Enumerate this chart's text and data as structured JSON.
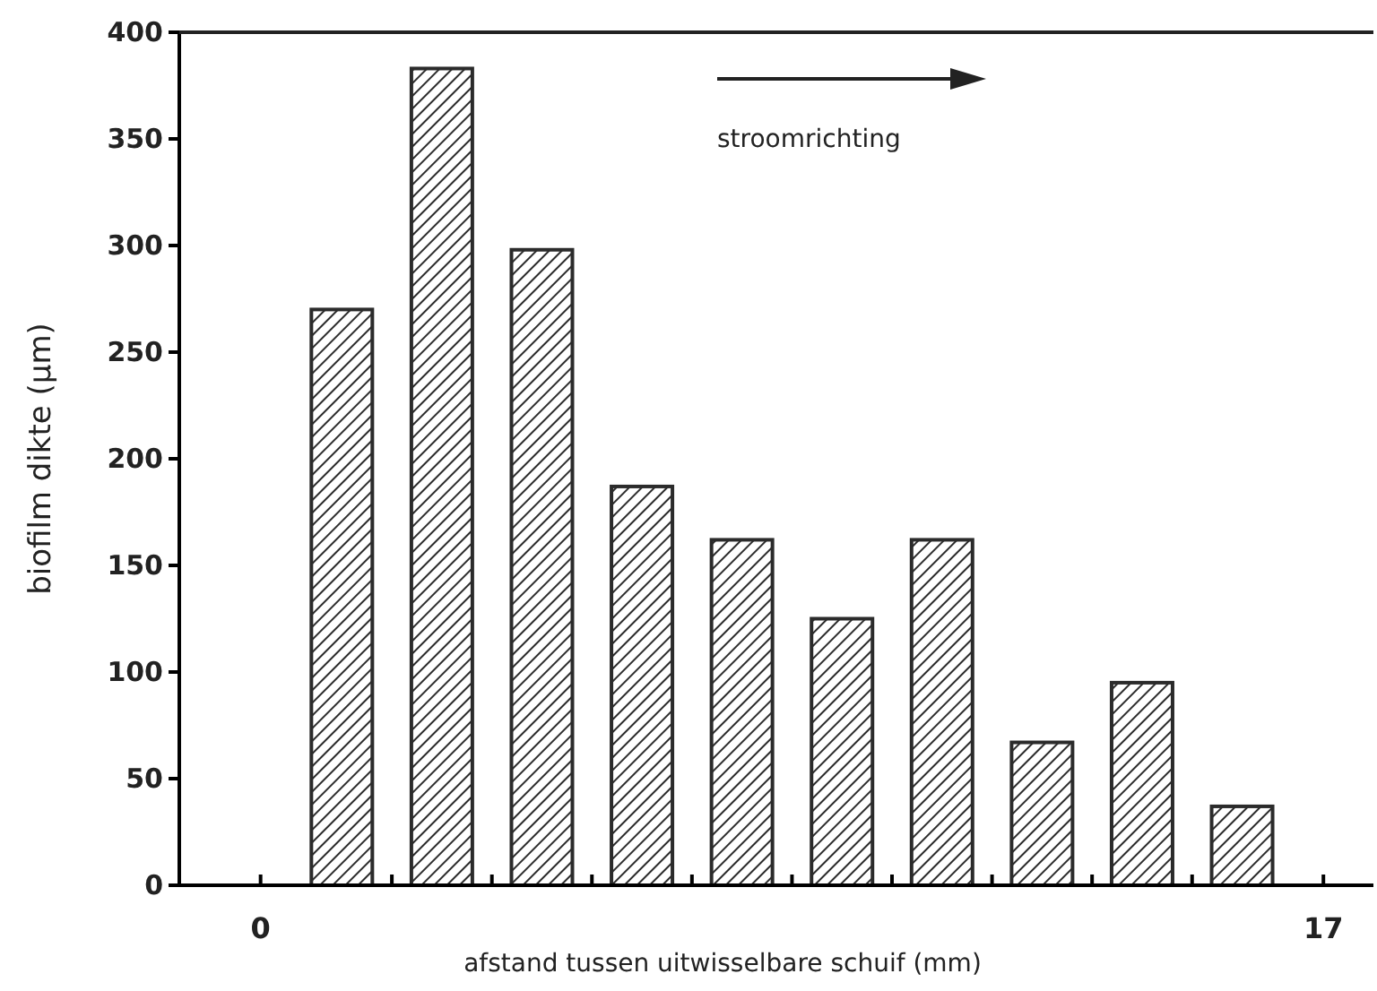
{
  "chart_data": {
    "type": "bar",
    "xlabel": "afstand tussen uitwisselbare schuif (mm)",
    "ylabel": "biofilm dikte (μm)",
    "x": [
      1.3,
      2.9,
      4.5,
      6.1,
      7.7,
      9.3,
      10.9,
      12.5,
      14.1,
      15.7
    ],
    "values": [
      270,
      383,
      298,
      187,
      162,
      125,
      162,
      67,
      95,
      37
    ],
    "color": "#2b2b2b",
    "xlim": [
      -1.3,
      17.8
    ],
    "xticks": [
      0,
      {
        "value": 2.1,
        "label": null
      },
      {
        "value": 3.7,
        "label": null
      },
      {
        "value": 5.3,
        "label": null
      },
      {
        "value": 6.9,
        "label": null
      },
      {
        "value": 8.5,
        "label": null
      },
      {
        "value": 10.1,
        "label": null
      },
      {
        "value": 11.7,
        "label": null
      },
      {
        "value": 13.3,
        "label": null
      },
      {
        "value": 14.9,
        "label": null
      },
      17
    ],
    "ylim": [
      0,
      400
    ],
    "yticks": [
      0,
      50,
      100,
      150,
      200,
      250,
      300,
      350,
      400
    ],
    "annotations": [
      "stroomrichting"
    ]
  }
}
